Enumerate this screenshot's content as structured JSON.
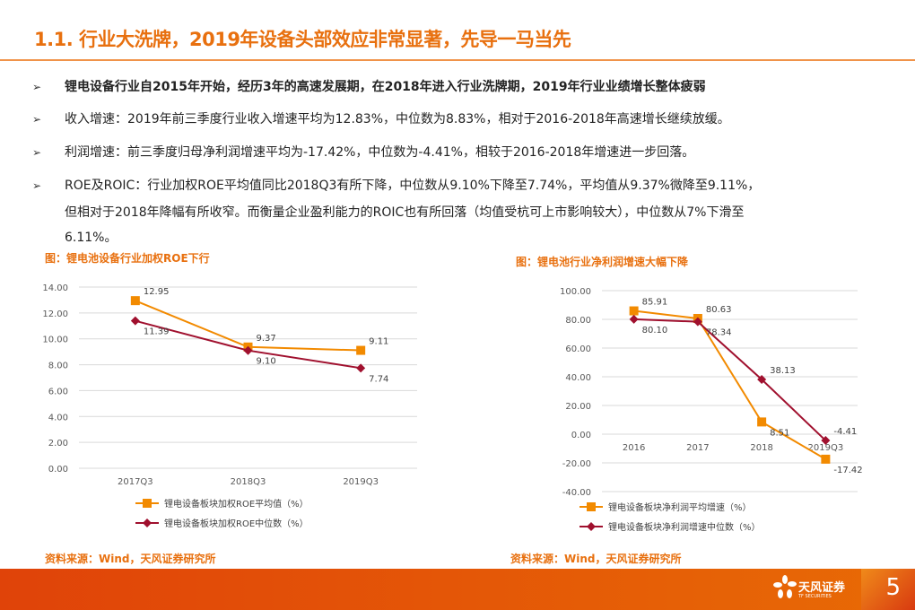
{
  "header": {
    "title": "1.1. 行业大洗牌，2019年设备头部效应非常显著，先导一马当先"
  },
  "bullets": [
    "锂电设备行业自2015年开始，经历3年的高速发展期，在2018年进入行业洗牌期，2019年行业业绩增长整体疲弱",
    "收入增速：2019年前三季度行业收入增速平均为12.83%，中位数为8.83%，相对于2016-2018年高速增长继续放缓。",
    "利润增速：前三季度归母净利润增速平均为-17.42%，中位数为-4.41%，相较于2016-2018年增速进一步回落。",
    "ROE及ROIC：行业加权ROE平均值同比2018Q3有所下降，中位数从9.10%下降至7.74%，平均值从9.37%微降至9.11%，",
    "但相对于2018年降幅有所收窄。而衡量企业盈利能力的ROIC也有所回落（均值受杭可上市影响较大），中位数从7%下滑至",
    "6.11%。"
  ],
  "bullet_marker": "➢",
  "colors": {
    "accent": "#e8700f",
    "series_mean": "#f28a00",
    "series_median": "#a0102e"
  },
  "chart_data": [
    {
      "type": "line",
      "title": "图：锂电池设备行业加权ROE下行",
      "categories": [
        "2017Q3",
        "2018Q3",
        "2019Q3"
      ],
      "ylim": [
        0,
        14
      ],
      "yticks": [
        "0.00",
        "2.00",
        "4.00",
        "6.00",
        "8.00",
        "10.00",
        "12.00",
        "14.00"
      ],
      "grid": true,
      "legend": "bottom",
      "series": [
        {
          "name": "锂电设备板块加权ROE平均值（%）",
          "values": [
            12.95,
            9.37,
            9.11
          ],
          "labels": [
            "12.95",
            "9.37",
            "9.11"
          ]
        },
        {
          "name": "锂电设备板块加权ROE中位数（%）",
          "values": [
            11.39,
            9.1,
            7.74
          ],
          "labels": [
            "11.39",
            "9.10",
            "7.74"
          ]
        }
      ],
      "source": "资料来源：Wind，天风证券研究所"
    },
    {
      "type": "line",
      "title": "图：锂电池行业净利润增速大幅下降",
      "categories": [
        "2016",
        "2017",
        "2018",
        "2019Q3"
      ],
      "ylim": [
        -40,
        100
      ],
      "yticks": [
        "-40.00",
        "-20.00",
        "0.00",
        "20.00",
        "40.00",
        "60.00",
        "80.00",
        "100.00"
      ],
      "grid": true,
      "legend": "bottom",
      "series": [
        {
          "name": "锂电设备板块净利润平均增速（%）",
          "values": [
            85.91,
            80.63,
            8.51,
            -17.42
          ],
          "labels": [
            "85.91",
            "80.63",
            "8.51",
            "-17.42"
          ]
        },
        {
          "name": "锂电设备板块净利润增速中位数（%）",
          "values": [
            80.1,
            78.34,
            38.13,
            -4.41
          ],
          "labels": [
            "80.10",
            "78.34",
            "38.13",
            "-4.41"
          ]
        }
      ],
      "source": "资料来源：Wind，天风证券研究所"
    }
  ],
  "footer": {
    "logo_cn": "天风证券",
    "logo_en": "TF SECURITIES",
    "page": "5"
  }
}
